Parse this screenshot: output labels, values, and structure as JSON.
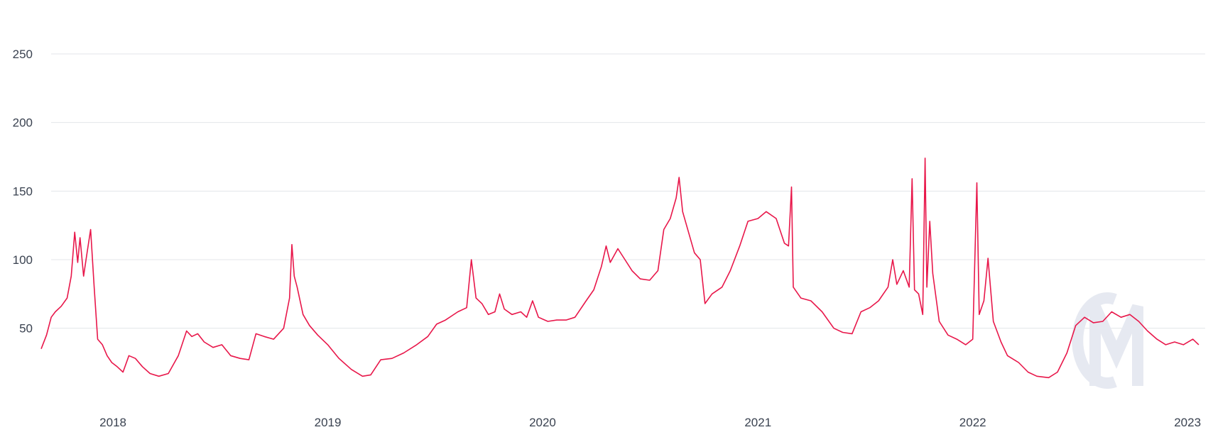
{
  "chart_data": {
    "type": "line",
    "title": "",
    "xlabel": "",
    "ylabel": "",
    "ylim": [
      10,
      280
    ],
    "y_ticks": [
      50,
      100,
      150,
      200,
      250
    ],
    "x_range": [
      "2017-09-01",
      "2023-01-31"
    ],
    "x_ticks": [
      {
        "date": "2018-01-01",
        "label": "2018"
      },
      {
        "date": "2019-01-01",
        "label": "2019"
      },
      {
        "date": "2020-01-01",
        "label": "2020"
      },
      {
        "date": "2021-01-01",
        "label": "2021"
      },
      {
        "date": "2022-01-01",
        "label": "2022"
      },
      {
        "date": "2023-01-01",
        "label": "2023"
      }
    ],
    "grid": "horizontal",
    "legend": "none",
    "watermark_icon": "coinmetrics-cm-logo",
    "line_color": "#e8174a",
    "series": [
      {
        "points": [
          [
            "2017-09-01",
            35
          ],
          [
            "2017-09-10",
            45
          ],
          [
            "2017-09-18",
            58
          ],
          [
            "2017-09-25",
            62
          ],
          [
            "2017-10-05",
            66
          ],
          [
            "2017-10-15",
            72
          ],
          [
            "2017-10-22",
            88
          ],
          [
            "2017-10-28",
            120
          ],
          [
            "2017-11-02",
            98
          ],
          [
            "2017-11-06",
            116
          ],
          [
            "2017-11-12",
            88
          ],
          [
            "2017-11-18",
            105
          ],
          [
            "2017-11-24",
            122
          ],
          [
            "2017-11-30",
            80
          ],
          [
            "2017-12-06",
            42
          ],
          [
            "2017-12-14",
            38
          ],
          [
            "2017-12-22",
            30
          ],
          [
            "2017-12-30",
            25
          ],
          [
            "2018-01-08",
            22
          ],
          [
            "2018-01-18",
            18
          ],
          [
            "2018-01-28",
            30
          ],
          [
            "2018-02-08",
            28
          ],
          [
            "2018-02-20",
            22
          ],
          [
            "2018-03-05",
            17
          ],
          [
            "2018-03-20",
            15
          ],
          [
            "2018-04-05",
            17
          ],
          [
            "2018-04-22",
            30
          ],
          [
            "2018-05-06",
            48
          ],
          [
            "2018-05-15",
            44
          ],
          [
            "2018-05-25",
            46
          ],
          [
            "2018-06-05",
            40
          ],
          [
            "2018-06-20",
            36
          ],
          [
            "2018-07-05",
            38
          ],
          [
            "2018-07-20",
            30
          ],
          [
            "2018-08-05",
            28
          ],
          [
            "2018-08-20",
            27
          ],
          [
            "2018-09-01",
            46
          ],
          [
            "2018-09-15",
            44
          ],
          [
            "2018-10-01",
            42
          ],
          [
            "2018-10-18",
            50
          ],
          [
            "2018-10-28",
            72
          ],
          [
            "2018-11-01",
            111
          ],
          [
            "2018-11-05",
            88
          ],
          [
            "2018-11-10",
            80
          ],
          [
            "2018-11-20",
            60
          ],
          [
            "2018-12-01",
            52
          ],
          [
            "2018-12-15",
            45
          ],
          [
            "2019-01-01",
            38
          ],
          [
            "2019-01-20",
            28
          ],
          [
            "2019-02-10",
            20
          ],
          [
            "2019-03-01",
            15
          ],
          [
            "2019-03-15",
            16
          ],
          [
            "2019-04-01",
            27
          ],
          [
            "2019-04-20",
            28
          ],
          [
            "2019-05-10",
            32
          ],
          [
            "2019-06-01",
            38
          ],
          [
            "2019-06-20",
            44
          ],
          [
            "2019-07-05",
            53
          ],
          [
            "2019-07-20",
            56
          ],
          [
            "2019-08-10",
            62
          ],
          [
            "2019-08-25",
            65
          ],
          [
            "2019-09-02",
            100
          ],
          [
            "2019-09-10",
            72
          ],
          [
            "2019-09-20",
            68
          ],
          [
            "2019-10-01",
            60
          ],
          [
            "2019-10-12",
            62
          ],
          [
            "2019-10-20",
            75
          ],
          [
            "2019-10-28",
            64
          ],
          [
            "2019-11-10",
            60
          ],
          [
            "2019-11-25",
            62
          ],
          [
            "2019-12-05",
            58
          ],
          [
            "2019-12-15",
            70
          ],
          [
            "2019-12-25",
            58
          ],
          [
            "2020-01-10",
            55
          ],
          [
            "2020-01-25",
            56
          ],
          [
            "2020-02-10",
            56
          ],
          [
            "2020-02-25",
            58
          ],
          [
            "2020-03-15",
            70
          ],
          [
            "2020-03-28",
            78
          ],
          [
            "2020-04-10",
            95
          ],
          [
            "2020-04-18",
            110
          ],
          [
            "2020-04-25",
            98
          ],
          [
            "2020-05-08",
            108
          ],
          [
            "2020-05-20",
            100
          ],
          [
            "2020-06-01",
            92
          ],
          [
            "2020-06-15",
            86
          ],
          [
            "2020-07-01",
            85
          ],
          [
            "2020-07-15",
            92
          ],
          [
            "2020-07-25",
            122
          ],
          [
            "2020-08-05",
            130
          ],
          [
            "2020-08-15",
            145
          ],
          [
            "2020-08-20",
            160
          ],
          [
            "2020-08-26",
            135
          ],
          [
            "2020-09-05",
            120
          ],
          [
            "2020-09-15",
            105
          ],
          [
            "2020-09-25",
            100
          ],
          [
            "2020-10-03",
            68
          ],
          [
            "2020-10-15",
            75
          ],
          [
            "2020-11-01",
            80
          ],
          [
            "2020-11-15",
            92
          ],
          [
            "2020-12-01",
            110
          ],
          [
            "2020-12-15",
            128
          ],
          [
            "2021-01-01",
            130
          ],
          [
            "2021-01-15",
            135
          ],
          [
            "2021-02-01",
            130
          ],
          [
            "2021-02-15",
            112
          ],
          [
            "2021-02-22",
            110
          ],
          [
            "2021-02-27",
            153
          ],
          [
            "2021-03-02",
            80
          ],
          [
            "2021-03-15",
            72
          ],
          [
            "2021-04-01",
            70
          ],
          [
            "2021-04-20",
            62
          ],
          [
            "2021-05-10",
            50
          ],
          [
            "2021-05-25",
            47
          ],
          [
            "2021-06-10",
            46
          ],
          [
            "2021-06-25",
            62
          ],
          [
            "2021-07-10",
            65
          ],
          [
            "2021-07-25",
            70
          ],
          [
            "2021-08-10",
            80
          ],
          [
            "2021-08-18",
            100
          ],
          [
            "2021-08-25",
            82
          ],
          [
            "2021-09-05",
            92
          ],
          [
            "2021-09-15",
            80
          ],
          [
            "2021-09-20",
            159
          ],
          [
            "2021-09-24",
            78
          ],
          [
            "2021-10-01",
            75
          ],
          [
            "2021-10-08",
            60
          ],
          [
            "2021-10-12",
            174
          ],
          [
            "2021-10-15",
            80
          ],
          [
            "2021-10-20",
            128
          ],
          [
            "2021-10-25",
            90
          ],
          [
            "2021-11-05",
            55
          ],
          [
            "2021-11-20",
            45
          ],
          [
            "2021-12-05",
            42
          ],
          [
            "2021-12-20",
            38
          ],
          [
            "2022-01-01",
            42
          ],
          [
            "2022-01-08",
            156
          ],
          [
            "2022-01-12",
            60
          ],
          [
            "2022-01-20",
            70
          ],
          [
            "2022-01-27",
            101
          ],
          [
            "2022-02-05",
            55
          ],
          [
            "2022-02-18",
            40
          ],
          [
            "2022-03-01",
            30
          ],
          [
            "2022-03-20",
            25
          ],
          [
            "2022-04-05",
            18
          ],
          [
            "2022-04-20",
            15
          ],
          [
            "2022-05-10",
            14
          ],
          [
            "2022-05-25",
            18
          ],
          [
            "2022-06-10",
            32
          ],
          [
            "2022-06-25",
            52
          ],
          [
            "2022-07-10",
            58
          ],
          [
            "2022-07-25",
            54
          ],
          [
            "2022-08-10",
            55
          ],
          [
            "2022-08-25",
            62
          ],
          [
            "2022-09-10",
            58
          ],
          [
            "2022-09-25",
            60
          ],
          [
            "2022-10-10",
            55
          ],
          [
            "2022-10-25",
            48
          ],
          [
            "2022-11-10",
            42
          ],
          [
            "2022-11-25",
            38
          ],
          [
            "2022-12-10",
            40
          ],
          [
            "2022-12-25",
            38
          ],
          [
            "2023-01-10",
            42
          ],
          [
            "2023-01-20",
            38
          ]
        ]
      }
    ]
  }
}
